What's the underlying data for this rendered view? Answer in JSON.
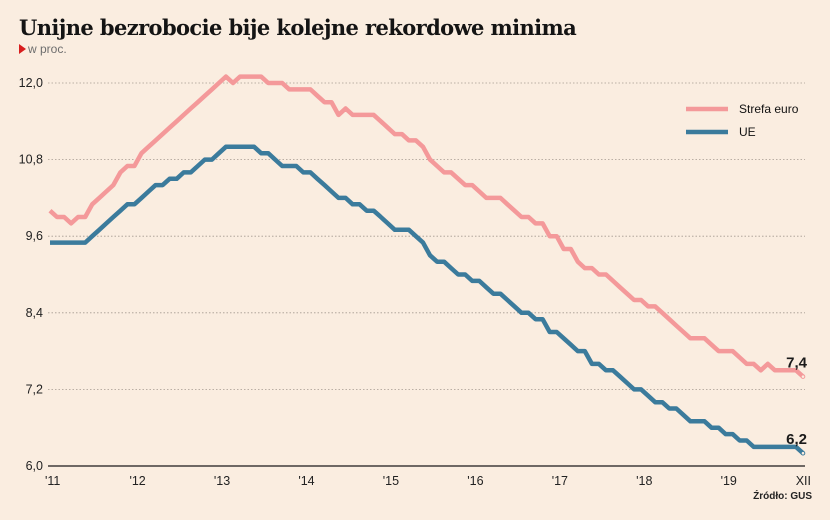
{
  "header": {
    "title": "Unijne bezrobocie bije kolejne rekordowe minima",
    "subtitle": "w proc.",
    "subtitle_marker_icon": "red-triangle-icon"
  },
  "footer": {
    "source": "Źródło: GUS"
  },
  "colors": {
    "background": "#faede0",
    "euro_area": "#f4999a",
    "eu": "#3b7b9c",
    "accent": "#d81e1e"
  },
  "chart_data": {
    "type": "line",
    "title": "Unijne bezrobocie bije kolejne rekordowe minima",
    "subtitle": "w proc.",
    "xlabel": "",
    "ylabel": "w proc.",
    "ylim": [
      6.0,
      12.0
    ],
    "yticks": [
      {
        "value": 6.0,
        "label": "6,0"
      },
      {
        "value": 7.2,
        "label": "7,2"
      },
      {
        "value": 8.4,
        "label": "8,4"
      },
      {
        "value": 9.6,
        "label": "9,6"
      },
      {
        "value": 10.8,
        "label": "10,8"
      },
      {
        "value": 12.0,
        "label": "12,0"
      }
    ],
    "xticks": [
      {
        "month_index": 0,
        "label": "'11"
      },
      {
        "month_index": 12,
        "label": "'12"
      },
      {
        "month_index": 24,
        "label": "'13"
      },
      {
        "month_index": 36,
        "label": "'14"
      },
      {
        "month_index": 48,
        "label": "'15"
      },
      {
        "month_index": 60,
        "label": "'16"
      },
      {
        "month_index": 72,
        "label": "'17"
      },
      {
        "month_index": 84,
        "label": "'18"
      },
      {
        "month_index": 96,
        "label": "'19"
      },
      {
        "month_index": 107,
        "label": "XII"
      }
    ],
    "x_range": "2011-01 to 2019-12 (monthly)",
    "grid": "horizontal dotted",
    "legend_position": "top-right",
    "series": [
      {
        "name": "Strefa euro",
        "color": "#f4999a",
        "end_label": "7,4",
        "values": [
          10.0,
          9.9,
          9.9,
          9.8,
          9.9,
          9.9,
          10.1,
          10.2,
          10.3,
          10.4,
          10.6,
          10.7,
          10.7,
          10.9,
          11.0,
          11.1,
          11.2,
          11.3,
          11.4,
          11.5,
          11.6,
          11.7,
          11.8,
          11.9,
          12.0,
          12.1,
          12.0,
          12.1,
          12.1,
          12.1,
          12.1,
          12.0,
          12.0,
          12.0,
          11.9,
          11.9,
          11.9,
          11.9,
          11.8,
          11.7,
          11.7,
          11.5,
          11.6,
          11.5,
          11.5,
          11.5,
          11.5,
          11.4,
          11.3,
          11.2,
          11.2,
          11.1,
          11.1,
          11.0,
          10.8,
          10.7,
          10.6,
          10.6,
          10.5,
          10.4,
          10.4,
          10.3,
          10.2,
          10.2,
          10.2,
          10.1,
          10.0,
          9.9,
          9.9,
          9.8,
          9.8,
          9.6,
          9.6,
          9.4,
          9.4,
          9.2,
          9.1,
          9.1,
          9.0,
          9.0,
          8.9,
          8.8,
          8.7,
          8.6,
          8.6,
          8.5,
          8.5,
          8.4,
          8.3,
          8.2,
          8.1,
          8.0,
          8.0,
          8.0,
          7.9,
          7.8,
          7.8,
          7.8,
          7.7,
          7.6,
          7.6,
          7.5,
          7.6,
          7.5,
          7.5,
          7.5,
          7.5,
          7.4
        ]
      },
      {
        "name": "UE",
        "color": "#3b7b9c",
        "end_label": "6,2",
        "values": [
          9.5,
          9.5,
          9.5,
          9.5,
          9.5,
          9.5,
          9.6,
          9.7,
          9.8,
          9.9,
          10.0,
          10.1,
          10.1,
          10.2,
          10.3,
          10.4,
          10.4,
          10.5,
          10.5,
          10.6,
          10.6,
          10.7,
          10.8,
          10.8,
          10.9,
          11.0,
          11.0,
          11.0,
          11.0,
          11.0,
          10.9,
          10.9,
          10.8,
          10.7,
          10.7,
          10.7,
          10.6,
          10.6,
          10.5,
          10.4,
          10.3,
          10.2,
          10.2,
          10.1,
          10.1,
          10.0,
          10.0,
          9.9,
          9.8,
          9.7,
          9.7,
          9.7,
          9.6,
          9.5,
          9.3,
          9.2,
          9.2,
          9.1,
          9.0,
          9.0,
          8.9,
          8.9,
          8.8,
          8.7,
          8.7,
          8.6,
          8.5,
          8.4,
          8.4,
          8.3,
          8.3,
          8.1,
          8.1,
          8.0,
          7.9,
          7.8,
          7.8,
          7.6,
          7.6,
          7.5,
          7.5,
          7.4,
          7.3,
          7.2,
          7.2,
          7.1,
          7.0,
          7.0,
          6.9,
          6.9,
          6.8,
          6.7,
          6.7,
          6.7,
          6.6,
          6.6,
          6.5,
          6.5,
          6.4,
          6.4,
          6.3,
          6.3,
          6.3,
          6.3,
          6.3,
          6.3,
          6.3,
          6.2
        ]
      }
    ]
  }
}
